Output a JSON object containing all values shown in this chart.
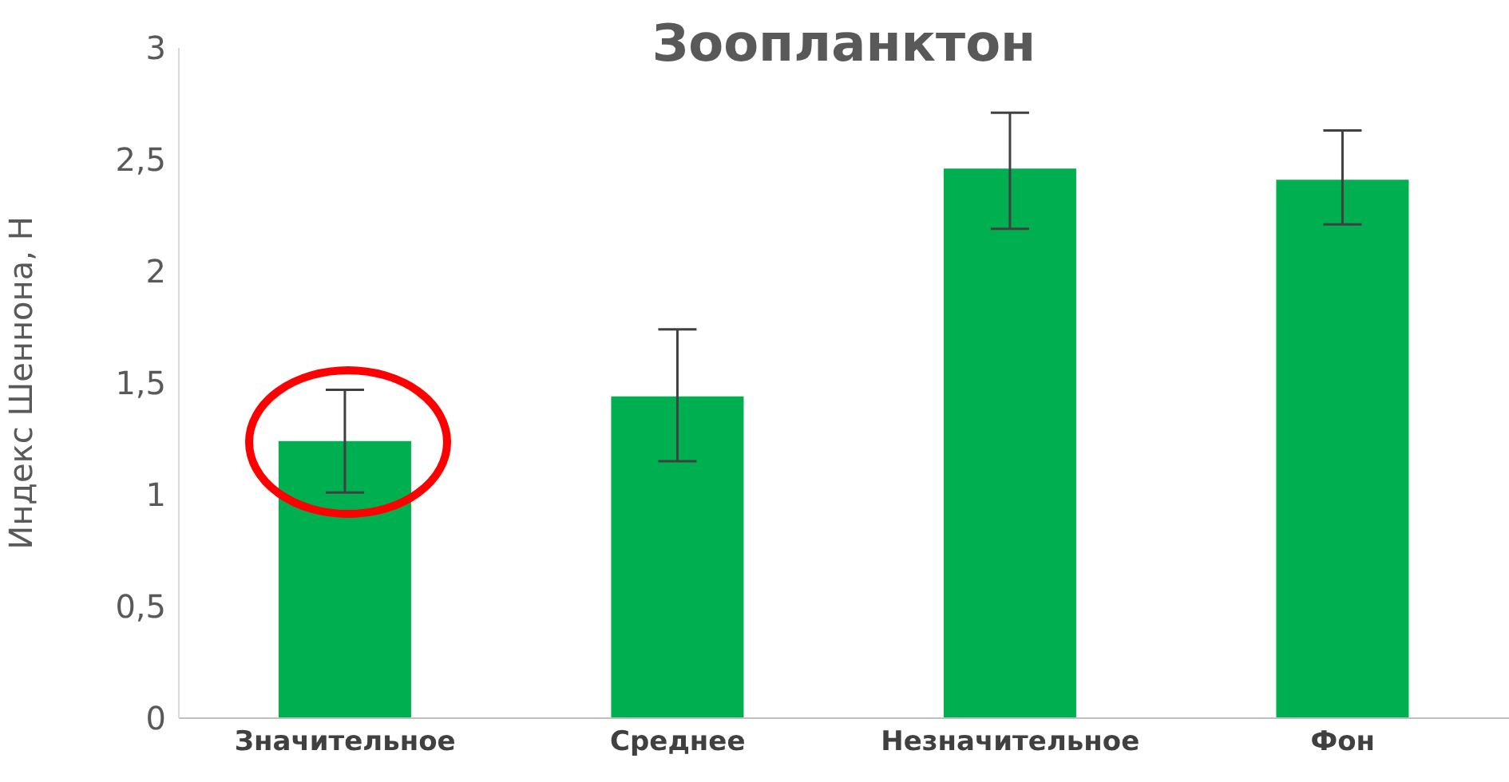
{
  "chart_data": {
    "type": "bar",
    "title": "Зоопланктон",
    "ylabel": "Индекс Шеннона, H",
    "categories": [
      "Значительное",
      "Среднее",
      "Незначительное",
      "Фон"
    ],
    "values": [
      1.24,
      1.44,
      2.46,
      2.41
    ],
    "errors": [
      [
        1.01,
        1.47
      ],
      [
        1.15,
        1.74
      ],
      [
        2.19,
        2.71
      ],
      [
        2.21,
        2.63
      ]
    ],
    "color": "#00b050",
    "ylim": [
      0,
      3
    ],
    "yticks": [
      0,
      {
        "value": 0.5,
        "label": "0,5"
      },
      1,
      {
        "value": 1.5,
        "label": "1,5"
      },
      2,
      {
        "value": 2.5,
        "label": "2,5"
      },
      3
    ],
    "grid": false
  }
}
